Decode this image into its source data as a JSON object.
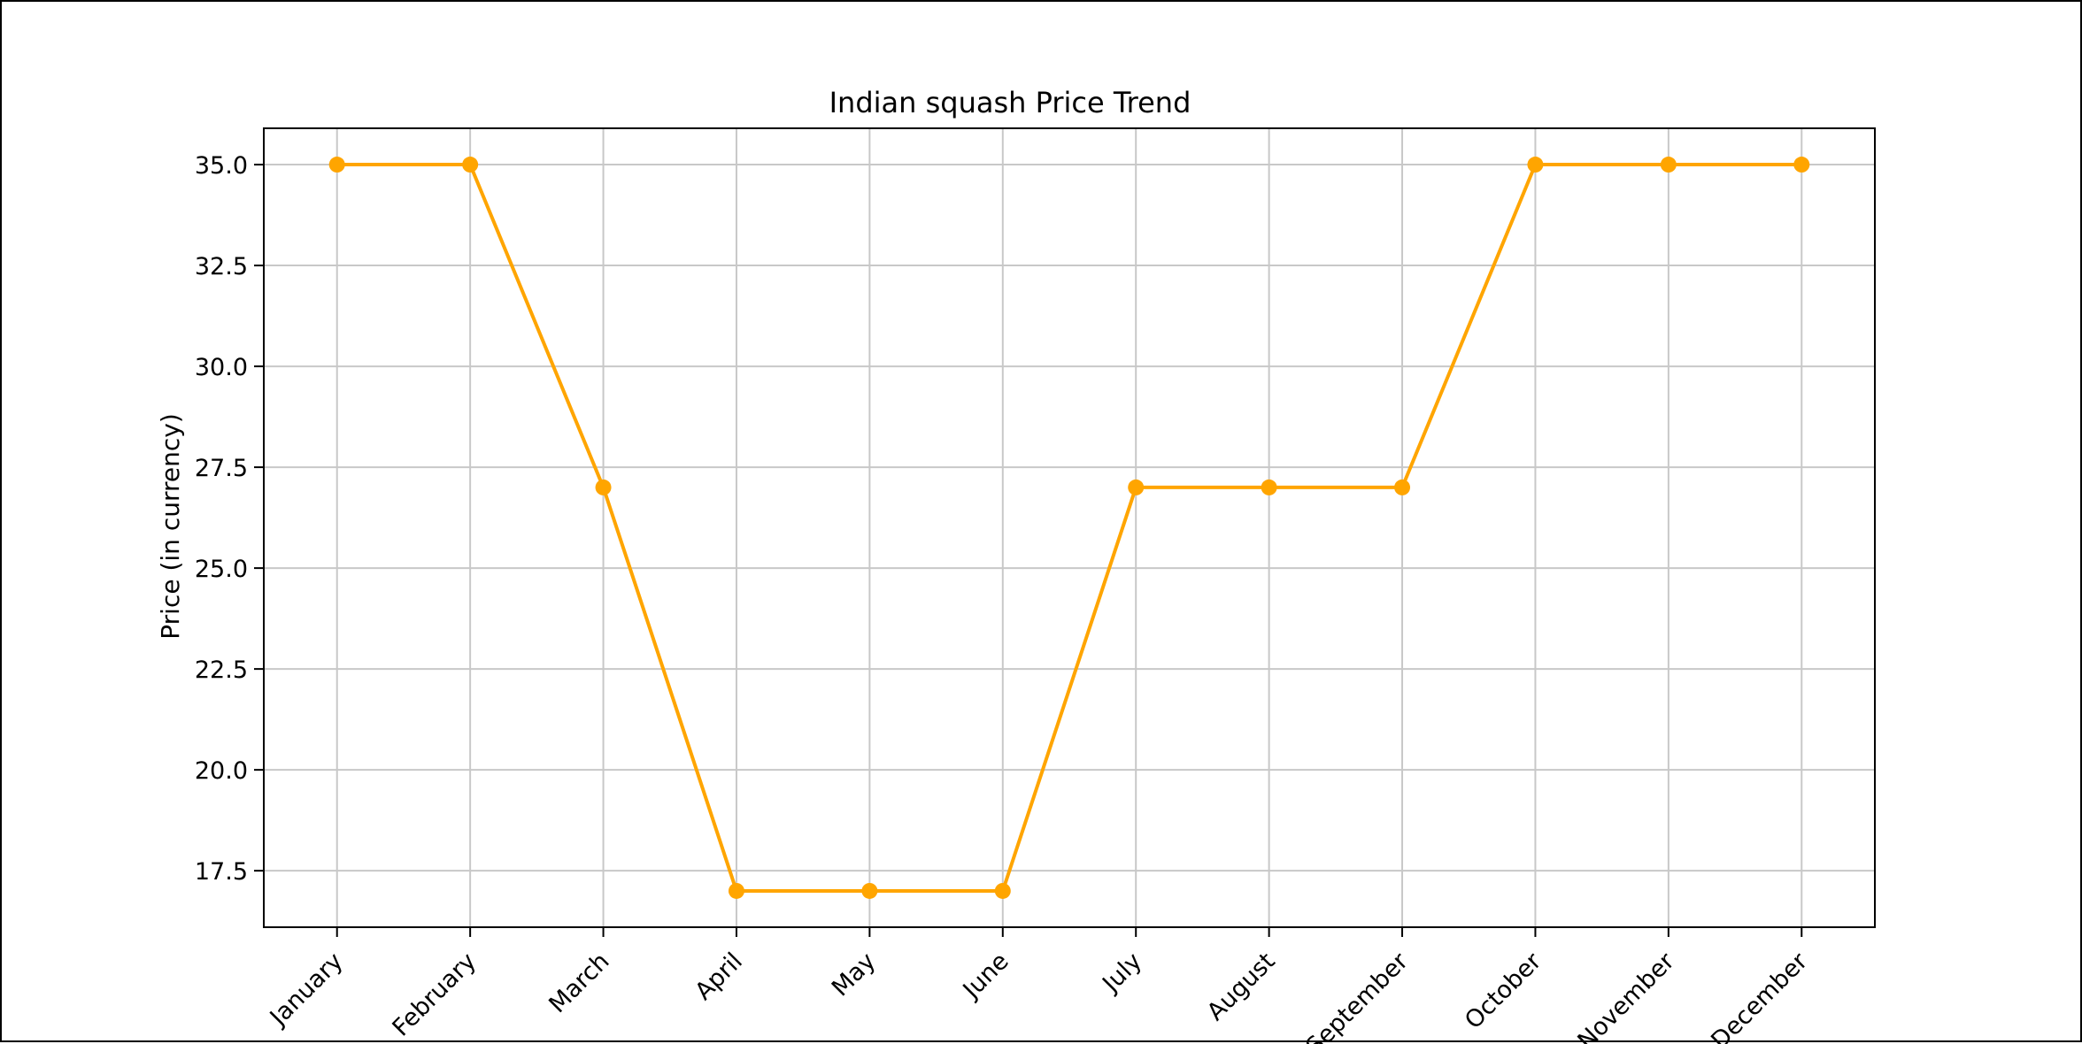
{
  "chart_data": {
    "type": "line",
    "title": "Indian squash Price Trend",
    "xlabel": "",
    "ylabel": "Price (in currency)",
    "categories": [
      "January",
      "February",
      "March",
      "April",
      "May",
      "June",
      "July",
      "August",
      "September",
      "October",
      "November",
      "December"
    ],
    "series": [
      {
        "values": [
          35,
          35,
          27,
          17,
          17,
          17,
          27,
          27,
          27,
          35,
          35,
          35
        ]
      }
    ],
    "ylim": [
      16.1,
      35.9
    ],
    "yticks": [
      17.5,
      20.0,
      22.5,
      25.0,
      27.5,
      30.0,
      32.5,
      35.0
    ],
    "ytick_labels": [
      "17.5",
      "20.0",
      "22.5",
      "25.0",
      "27.5",
      "30.0",
      "32.5",
      "35.0"
    ],
    "grid": true,
    "line_color": "#FFA500",
    "marker": "circle"
  }
}
